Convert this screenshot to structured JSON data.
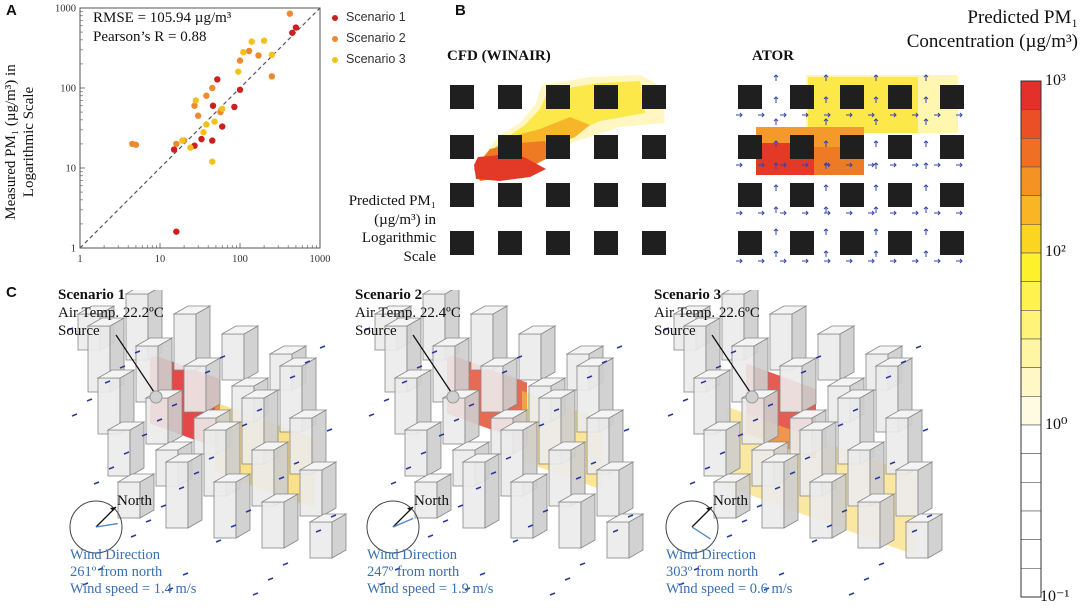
{
  "panel_labels": {
    "a": "A",
    "b": "B",
    "c": "C"
  },
  "scatter": {
    "stats_line1": "RMSE = 105.94 µg/m³",
    "stats_line2": "Pearson’s R = 0.88",
    "xlabel_lines": [
      "Predicted PM₁",
      "(µg/m³) in",
      "Logarithmic",
      "Scale"
    ],
    "ylabel_lines": [
      "Measured PM₁ (µg/m³) in",
      "Logarithmic Scale"
    ],
    "legend": [
      "Scenario 1",
      "Scenario 2",
      "Scenario 3"
    ]
  },
  "chart_data": [
    {
      "type": "scatter",
      "xscale": "log",
      "yscale": "log",
      "xlim": [
        1,
        1000
      ],
      "ylim": [
        1,
        1000
      ],
      "xticks": [
        "1",
        "10",
        "100",
        "1000"
      ],
      "yticks": [
        "1",
        "10",
        "100",
        "1000"
      ],
      "reference_line": "y = x (dashed)",
      "series": [
        {
          "name": "Scenario 1",
          "color": "#cc1f1f",
          "x": [
            16,
            15,
            27,
            33,
            45,
            52,
            85,
            100,
            46,
            60,
            500,
            450
          ],
          "y": [
            1.6,
            17,
            19,
            23,
            22,
            128,
            58,
            95,
            60,
            33,
            570,
            490
          ]
        },
        {
          "name": "Scenario 2",
          "color": "#ee8a2e",
          "x": [
            4.5,
            5,
            16,
            20,
            27,
            30,
            38,
            45,
            57,
            100,
            130,
            170,
            420,
            250
          ],
          "y": [
            20,
            19.5,
            20,
            22,
            60,
            45,
            80,
            100,
            50,
            220,
            290,
            255,
            850,
            140
          ]
        },
        {
          "name": "Scenario 3",
          "color": "#f3c21a",
          "x": [
            19,
            24,
            38,
            45,
            48,
            60,
            95,
            110,
            140,
            200,
            250,
            28,
            35
          ],
          "y": [
            22,
            18,
            35,
            12,
            38,
            55,
            160,
            280,
            380,
            390,
            260,
            70,
            28
          ]
        }
      ]
    },
    {
      "type": "heatmap",
      "title": "Predicted PM₁ Concentration (µg/m³)",
      "scale": "log",
      "range": [
        0.1,
        1000
      ],
      "ticks": [
        "10³",
        "10²",
        "10⁰",
        "10⁻¹"
      ],
      "panels": [
        "CFD (WINAIR)",
        "ATOR"
      ]
    }
  ],
  "panel_b": {
    "cfd_label": "CFD (WINAIR)",
    "ator_label": "ATOR",
    "colorbar_title_line1": "Predicted PM₁",
    "colorbar_title_line2": "Concentration (µg/m³)",
    "colorbar_ticks": [
      "10³",
      "10²",
      "10⁰",
      "10⁻¹"
    ],
    "colorbar_colors": [
      "#e3302a",
      "#ea4f26",
      "#ef6f24",
      "#f59224",
      "#fab524",
      "#fcd520",
      "#fdf12c",
      "#fff24f",
      "#fff37a",
      "#fff5a3",
      "#fff7c6",
      "#fffbe2",
      "#ffffff",
      "#ffffff",
      "#ffffff",
      "#ffffff",
      "#ffffff",
      "#ffffff"
    ]
  },
  "panel_c": {
    "north_label": "North",
    "source_label": "Source",
    "scenarios": [
      {
        "title": "Scenario 1",
        "air_temp": "Air Temp. 22.2ºC",
        "wind_dir_label": "Wind Direction",
        "wind_from": "261º from north",
        "wind_speed": "Wind speed = 1.4 m/s",
        "wind_angle": 261
      },
      {
        "title": "Scenario 2",
        "air_temp": "Air Temp. 22.4ºC",
        "wind_dir_label": "Wind Direction",
        "wind_from": "247º from north",
        "wind_speed": "Wind speed = 1.9 m/s",
        "wind_angle": 247
      },
      {
        "title": "Scenario 3",
        "air_temp": "Air Temp. 22.6ºC",
        "wind_dir_label": "Wind Direction",
        "wind_from": "303º from north",
        "wind_speed": "Wind speed = 0.6 m/s",
        "wind_angle": 303
      }
    ]
  }
}
